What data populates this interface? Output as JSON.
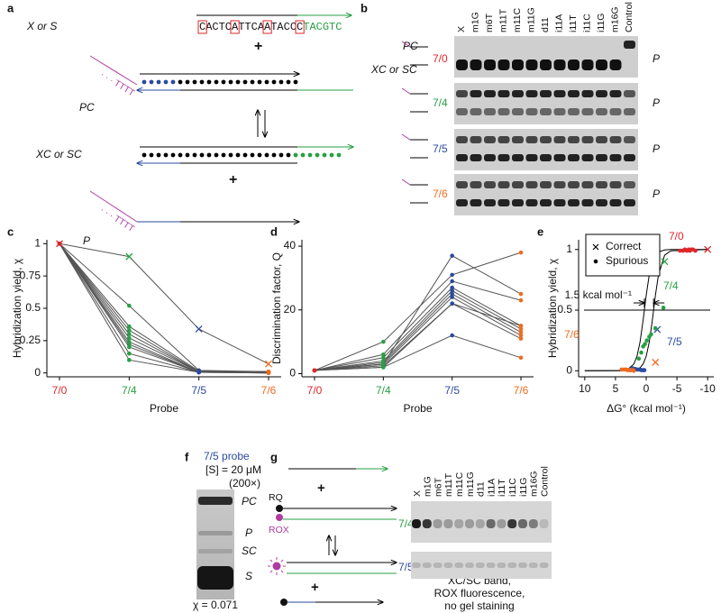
{
  "panels": {
    "a": {
      "label": "a",
      "strand_label": "X or S",
      "sequence": [
        "C",
        "ACTC",
        "A",
        "TTCA",
        "A",
        "TACC",
        "C",
        "TACGTC"
      ],
      "plus_1": "+",
      "pc_label": "PC",
      "xc_label": "XC or SC",
      "plus_2": "+",
      "p_label": "P"
    },
    "b": {
      "label": "b",
      "lanes": [
        "X",
        "m1G",
        "m6T",
        "m11T",
        "m11C",
        "m11G",
        "d11",
        "i11A",
        "i11T",
        "i11C",
        "i11G",
        "m16G",
        "Control"
      ],
      "pc_label": "PC",
      "xc_label": "XC or SC",
      "probes": [
        "7/0",
        "7/4",
        "7/5",
        "7/6"
      ],
      "band_labels": [
        "P",
        "P",
        "P",
        "P"
      ]
    },
    "c": {
      "label": "c"
    },
    "d": {
      "label": "d"
    },
    "e": {
      "label": "e"
    },
    "f": {
      "label": "f",
      "probe": "7/5 probe",
      "concentration": "[S] = 20 μM",
      "fold": "(200×)",
      "bands": [
        "PC",
        "P",
        "SC",
        "S"
      ],
      "yield": "χ = 0.071"
    },
    "g": {
      "label": "g",
      "plus_1": "+",
      "rq": "RQ",
      "rox": "ROX",
      "probes": [
        "7/4",
        "7/5"
      ],
      "plus_2": "+",
      "lanes": [
        "X",
        "m1G",
        "m6T",
        "m11T",
        "m11C",
        "m11G",
        "d11",
        "i11A",
        "i11T",
        "i11C",
        "i11G",
        "m16G",
        "Control"
      ],
      "caption": [
        "XC/SC band,",
        "ROX fluorescence,",
        "no gel staining"
      ]
    }
  },
  "chart_data": [
    {
      "type": "line",
      "ylabel": "Hybridization yield, χ",
      "xlabel": "Probe",
      "categories": [
        "7/0",
        "7/4",
        "7/5",
        "7/6"
      ],
      "category_colors": [
        "#e0262b",
        "#26a043",
        "#2b4aa0",
        "#ef6b1f"
      ],
      "ylim": [
        -0.03,
        1.03
      ],
      "yticks": [
        0,
        0.25,
        0.5,
        0.75,
        1
      ],
      "line_color": "#555555",
      "series": [
        {
          "marker": "dot",
          "values": [
            1,
            0.52,
            0.02,
            0.01
          ]
        },
        {
          "marker": "dot",
          "values": [
            1,
            0.36,
            0.015,
            0.01
          ]
        },
        {
          "marker": "dot",
          "values": [
            1,
            0.33,
            0.01,
            0.01
          ]
        },
        {
          "marker": "dot",
          "values": [
            1,
            0.3,
            0.01,
            0.005
          ]
        },
        {
          "marker": "dot",
          "values": [
            1,
            0.27,
            0.01,
            0.005
          ]
        },
        {
          "marker": "dot",
          "values": [
            1,
            0.24,
            0.005,
            0.005
          ]
        },
        {
          "marker": "dot",
          "values": [
            1,
            0.22,
            0.005,
            0.005
          ]
        },
        {
          "marker": "dot",
          "values": [
            1,
            0.2,
            0.005,
            0
          ]
        },
        {
          "marker": "dot",
          "values": [
            1,
            0.15,
            0.005,
            0
          ]
        },
        {
          "marker": "dot",
          "values": [
            1,
            0.1,
            0.005,
            0
          ]
        },
        {
          "marker": "x",
          "values": [
            1,
            0.9,
            0.34,
            0.07
          ]
        }
      ]
    },
    {
      "type": "line",
      "ylabel": "Discrimination factor, Q",
      "xlabel": "Probe",
      "categories": [
        "7/0",
        "7/4",
        "7/5",
        "7/6"
      ],
      "category_colors": [
        "#e0262b",
        "#26a043",
        "#2b4aa0",
        "#ef6b1f"
      ],
      "ylim": [
        -1,
        42
      ],
      "yticks": [
        0,
        20,
        40
      ],
      "line_color": "#555555",
      "series": [
        {
          "marker": "dot",
          "values": [
            1,
            3,
            37,
            25
          ]
        },
        {
          "marker": "dot",
          "values": [
            1,
            10,
            31,
            38
          ]
        },
        {
          "marker": "dot",
          "values": [
            1,
            6,
            29,
            23
          ]
        },
        {
          "marker": "dot",
          "values": [
            1,
            5,
            27,
            15
          ]
        },
        {
          "marker": "dot",
          "values": [
            1,
            4,
            26,
            14
          ]
        },
        {
          "marker": "dot",
          "values": [
            1,
            3.5,
            25,
            13
          ]
        },
        {
          "marker": "dot",
          "values": [
            1,
            3,
            24,
            12
          ]
        },
        {
          "marker": "dot",
          "values": [
            1,
            2.5,
            22,
            11
          ]
        },
        {
          "marker": "dot",
          "values": [
            1,
            2,
            22,
            15
          ]
        },
        {
          "marker": "dot",
          "values": [
            1,
            2,
            12,
            5
          ]
        }
      ]
    },
    {
      "type": "scatter",
      "ylabel": "Hybridization yield, χ",
      "xlabel": "ΔG° (kcal mol⁻¹)",
      "xlim": [
        11,
        -11
      ],
      "xticks": [
        10,
        5,
        0,
        -5,
        -10
      ],
      "ylim": [
        -0.05,
        1.08
      ],
      "yticks": [
        0,
        0.5,
        1
      ],
      "legend": "upper-left",
      "reference_line": 0.5,
      "gap_label": "1.5 kcal mol⁻¹",
      "annotations": [
        {
          "text": "7/0",
          "color": "#e0262b"
        },
        {
          "text": "7/4",
          "color": "#26a043"
        },
        {
          "text": "7/5",
          "color": "#2b4aa0"
        },
        {
          "text": "7/6",
          "color": "#ef6b1f"
        }
      ],
      "series": [
        {
          "type": "line",
          "color": "#000000",
          "x": [
            10,
            4,
            3,
            2,
            1.5,
            1,
            0.5,
            0,
            -0.5,
            -1,
            -1.5,
            -2,
            -3,
            -4,
            -10
          ],
          "values": [
            0,
            0.002,
            0.011,
            0.056,
            0.119,
            0.237,
            0.417,
            0.622,
            0.791,
            0.897,
            0.953,
            0.979,
            0.996,
            1,
            1
          ]
        },
        {
          "type": "line",
          "color": "#000000",
          "x": [
            10,
            4,
            3,
            2,
            1.5,
            1,
            0.5,
            0,
            -0.5,
            -1,
            -1.5,
            -2,
            -3,
            -4,
            -10
          ],
          "values": [
            0,
            0,
            0.001,
            0.005,
            0.011,
            0.025,
            0.056,
            0.119,
            0.237,
            0.417,
            0.622,
            0.791,
            0.953,
            0.989,
            1
          ]
        },
        {
          "name": "Correct",
          "marker": "x",
          "color": "#000000",
          "x": [
            -10,
            -3,
            -1.8,
            -1.5
          ],
          "values": [
            1,
            0.9,
            0.34,
            0.07
          ],
          "point_colors": [
            "#e0262b",
            "#26a043",
            "#2b4aa0",
            "#ef6b1f"
          ]
        },
        {
          "name": "Spurious",
          "marker": "dot",
          "color": "#000000",
          "x": [
            -5.5,
            -6,
            -6.3,
            -6.6,
            -6.9,
            -7.1,
            -7.3,
            -7.6,
            -8,
            1.2,
            0.8,
            0.5,
            0.2,
            -0.1,
            -0.5,
            -0.8,
            -1.5,
            -2.8,
            2.2,
            1.8,
            1.5,
            1.2,
            1,
            0.8,
            0.5,
            0.3,
            4,
            3.6,
            3.3,
            3,
            2.7,
            2.5,
            2.2,
            2
          ],
          "values": [
            0.99,
            0.99,
            1,
            0.99,
            1,
            0.99,
            1,
            1,
            0.99,
            0.1,
            0.15,
            0.2,
            0.22,
            0.25,
            0.28,
            0.3,
            0.35,
            0.52,
            0.02,
            0.015,
            0.01,
            0.01,
            0.01,
            0.005,
            0.005,
            0.005,
            0.01,
            0.01,
            0.01,
            0.005,
            0.005,
            0.005,
            0.005,
            0
          ],
          "point_colors": [
            "#e0262b",
            "#e0262b",
            "#e0262b",
            "#e0262b",
            "#e0262b",
            "#e0262b",
            "#e0262b",
            "#e0262b",
            "#e0262b",
            "#26a043",
            "#26a043",
            "#26a043",
            "#26a043",
            "#26a043",
            "#26a043",
            "#26a043",
            "#26a043",
            "#26a043",
            "#2b4aa0",
            "#2b4aa0",
            "#2b4aa0",
            "#2b4aa0",
            "#2b4aa0",
            "#2b4aa0",
            "#2b4aa0",
            "#2b4aa0",
            "#ef6b1f",
            "#ef6b1f",
            "#ef6b1f",
            "#ef6b1f",
            "#ef6b1f",
            "#ef6b1f",
            "#ef6b1f",
            "#ef6b1f"
          ]
        }
      ]
    }
  ]
}
